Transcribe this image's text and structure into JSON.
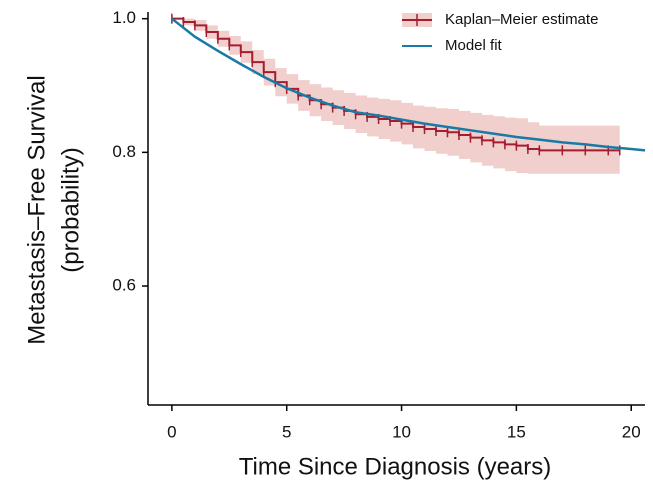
{
  "chart_data": {
    "type": "line",
    "xlabel": "Time Since Diagnosis (years)",
    "ylabel": [
      "Metastasis–Free Survival",
      "(probability)"
    ],
    "xlim": [
      -1.04,
      20.6
    ],
    "ylim": [
      0.422,
      1.01
    ],
    "xticks": [
      0,
      5,
      10,
      15,
      20
    ],
    "yticks": [
      {
        "value": 1.0,
        "label": "1.0"
      },
      {
        "value": 0.8,
        "label": "0.8"
      },
      {
        "value": 0.6,
        "label": "0.6"
      }
    ],
    "legend": "upper right",
    "series": [
      {
        "name": "Kaplan–Meier estimate",
        "color": "#a51c30",
        "band_color": "#f0cfcc",
        "style": "step",
        "x": [
          0,
          0.5,
          1,
          1.5,
          2,
          2.5,
          3,
          3.5,
          4,
          4.5,
          5,
          5.5,
          6,
          6.5,
          7,
          7.5,
          8,
          8.5,
          9,
          9.5,
          10,
          10.5,
          11,
          11.5,
          12,
          12.5,
          13,
          13.5,
          14,
          14.5,
          15,
          15.5,
          16,
          17,
          18,
          19,
          19.5
        ],
        "values": [
          1.0,
          0.995,
          0.99,
          0.98,
          0.97,
          0.96,
          0.95,
          0.935,
          0.92,
          0.905,
          0.895,
          0.885,
          0.878,
          0.872,
          0.867,
          0.862,
          0.857,
          0.853,
          0.85,
          0.847,
          0.843,
          0.838,
          0.835,
          0.832,
          0.83,
          0.826,
          0.822,
          0.818,
          0.815,
          0.812,
          0.81,
          0.805,
          0.803,
          0.803,
          0.803,
          0.803,
          0.803
        ],
        "lower": [
          1.0,
          0.99,
          0.982,
          0.97,
          0.958,
          0.946,
          0.934,
          0.917,
          0.9,
          0.884,
          0.873,
          0.862,
          0.854,
          0.847,
          0.841,
          0.835,
          0.829,
          0.824,
          0.82,
          0.816,
          0.812,
          0.806,
          0.802,
          0.798,
          0.795,
          0.79,
          0.785,
          0.78,
          0.776,
          0.772,
          0.769,
          0.768,
          0.768,
          0.768,
          0.768,
          0.768,
          0.768
        ],
        "upper": [
          1.0,
          1.0,
          0.998,
          0.99,
          0.982,
          0.974,
          0.966,
          0.953,
          0.94,
          0.926,
          0.917,
          0.908,
          0.902,
          0.897,
          0.893,
          0.889,
          0.885,
          0.882,
          0.88,
          0.878,
          0.874,
          0.87,
          0.868,
          0.866,
          0.865,
          0.862,
          0.859,
          0.856,
          0.854,
          0.852,
          0.851,
          0.845,
          0.84,
          0.84,
          0.84,
          0.84,
          0.84
        ]
      },
      {
        "name": "Model fit",
        "color": "#1a7aa6",
        "style": "smooth",
        "x": [
          0,
          1,
          2,
          3,
          4,
          5,
          6,
          7,
          8,
          9,
          10,
          11,
          12,
          13,
          14,
          15,
          16,
          17,
          18,
          19,
          20,
          20.6
        ],
        "values": [
          1.0,
          0.973,
          0.952,
          0.932,
          0.913,
          0.896,
          0.882,
          0.87,
          0.86,
          0.855,
          0.849,
          0.843,
          0.838,
          0.833,
          0.828,
          0.823,
          0.819,
          0.815,
          0.812,
          0.808,
          0.805,
          0.803
        ]
      }
    ]
  }
}
